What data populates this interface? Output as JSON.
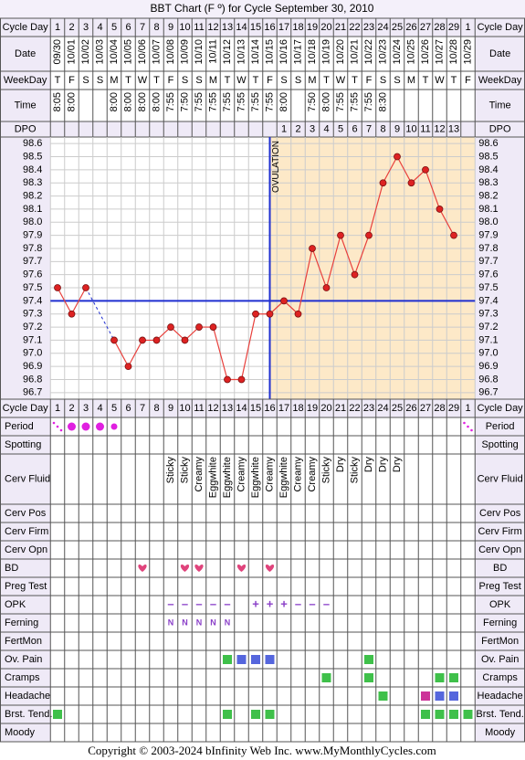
{
  "chart_data": {
    "type": "line",
    "title": "BBT Chart (F º) for Cycle September 30, 2010",
    "row_labels": {
      "cycle_day": "Cycle Day",
      "date": "Date",
      "weekday": "WeekDay",
      "time": "Time",
      "dpo": "DPO"
    },
    "cycle_days": [
      1,
      2,
      3,
      4,
      5,
      6,
      7,
      8,
      9,
      10,
      11,
      12,
      13,
      14,
      15,
      16,
      17,
      18,
      19,
      20,
      21,
      22,
      23,
      24,
      25,
      26,
      27,
      28,
      29,
      1
    ],
    "dates": [
      "09/30",
      "10/01",
      "10/02",
      "10/03",
      "10/04",
      "10/05",
      "10/06",
      "10/07",
      "10/08",
      "10/09",
      "10/10",
      "10/11",
      "10/12",
      "10/13",
      "10/14",
      "10/15",
      "10/16",
      "10/17",
      "10/18",
      "10/19",
      "10/20",
      "10/21",
      "10/22",
      "10/23",
      "10/24",
      "10/25",
      "10/26",
      "10/27",
      "10/28",
      "10/29"
    ],
    "weekdays": [
      "T",
      "F",
      "S",
      "S",
      "M",
      "T",
      "W",
      "T",
      "F",
      "S",
      "S",
      "M",
      "T",
      "W",
      "T",
      "F",
      "S",
      "S",
      "M",
      "T",
      "W",
      "T",
      "F",
      "S",
      "S",
      "M",
      "T",
      "W",
      "T",
      "F"
    ],
    "times": [
      "8:05",
      "8:00",
      null,
      null,
      "8:00",
      "8:00",
      "8:00",
      "8:00",
      "7:55",
      "7:50",
      "7:55",
      "7:55",
      "7:55",
      "7:55",
      "7:55",
      "7:55",
      "8:00",
      null,
      "7:50",
      "8:00",
      "7:55",
      "7:55",
      "7:55",
      "8:30",
      null,
      null,
      null,
      null,
      null,
      null
    ],
    "dpo": [
      null,
      null,
      null,
      null,
      null,
      null,
      null,
      null,
      null,
      null,
      null,
      null,
      null,
      null,
      null,
      null,
      1,
      2,
      3,
      4,
      5,
      6,
      7,
      8,
      9,
      10,
      11,
      12,
      13,
      null
    ],
    "series": [
      {
        "color": "#e8403c",
        "values": [
          97.5,
          97.3,
          97.5,
          null,
          97.1,
          96.9,
          97.1,
          97.1,
          97.2,
          97.1,
          97.2,
          97.2,
          96.8,
          96.8,
          97.3,
          97.3,
          97.4,
          97.3,
          97.8,
          97.5,
          97.9,
          97.6,
          97.9,
          98.3,
          98.5,
          98.3,
          98.4,
          98.1,
          97.9,
          null
        ]
      }
    ],
    "ylim": [
      96.65,
      98.65
    ],
    "yticks": [
      98.6,
      98.5,
      98.4,
      98.3,
      98.2,
      98.1,
      {
        "value": 98,
        "label": "98.0"
      },
      97.9,
      97.8,
      97.7,
      97.6,
      97.5,
      97.4,
      97.3,
      97.2,
      97.1,
      {
        "value": 97,
        "label": "97.0"
      },
      96.9,
      96.8,
      96.7
    ],
    "grid": true,
    "coverline": 97.4,
    "coverline_color": "#1f2fd0",
    "ovulation_day": 16,
    "annotation": "OVULATION",
    "post_ovulation_color": "#fde9c8",
    "level_colors": [
      "#3fc04a",
      "#5566dd",
      "#cc3399"
    ],
    "fertility_rows": [
      {
        "label": "Period",
        "kind": "period",
        "color": "#e020e0",
        "values": [
          1,
          3,
          3,
          3,
          2,
          null,
          null,
          null,
          null,
          null,
          null,
          null,
          null,
          null,
          null,
          null,
          null,
          null,
          null,
          null,
          null,
          null,
          null,
          null,
          null,
          null,
          null,
          null,
          null,
          1
        ]
      },
      {
        "label": "Spotting"
      },
      {
        "label": "Cerv Fluid",
        "kind": "text",
        "vertical": true,
        "values": [
          null,
          null,
          null,
          null,
          null,
          null,
          null,
          null,
          "Sticky",
          "Sticky",
          "Creamy",
          "Eggwhite",
          "Eggwhite",
          "Creamy",
          "Eggwhite",
          "Creamy",
          "Eggwhite",
          "Creamy",
          "Creamy",
          "Sticky",
          "Dry",
          "Sticky",
          "Dry",
          "Dry",
          "Dry",
          null,
          null,
          null,
          null,
          null
        ]
      },
      {
        "label": "Cerv Pos"
      },
      {
        "label": "Cerv Firm"
      },
      {
        "label": "Cerv Opn"
      },
      {
        "label": "BD",
        "kind": "heart",
        "color": "#e0447c",
        "values": [
          null,
          null,
          null,
          null,
          null,
          null,
          1,
          null,
          null,
          1,
          1,
          null,
          null,
          1,
          null,
          1,
          null,
          null,
          null,
          null,
          null,
          null,
          null,
          null,
          null,
          null,
          null,
          null,
          null,
          null
        ]
      },
      {
        "label": "Preg Test"
      },
      {
        "label": "OPK",
        "kind": "text",
        "color": "#8a3fc8",
        "values": [
          null,
          null,
          null,
          null,
          null,
          null,
          null,
          null,
          "–",
          "–",
          "–",
          "–",
          "–",
          null,
          "+",
          "+",
          "+",
          "–",
          "–",
          "–",
          null,
          null,
          null,
          null,
          null,
          null,
          null,
          null,
          null,
          null
        ]
      },
      {
        "label": "Ferning",
        "kind": "text",
        "color": "#8a3fc8",
        "small": true,
        "values": [
          null,
          null,
          null,
          null,
          null,
          null,
          null,
          null,
          "N",
          "N",
          "N",
          "N",
          "N",
          null,
          null,
          null,
          null,
          null,
          null,
          null,
          null,
          null,
          null,
          null,
          null,
          null,
          null,
          null,
          null,
          null
        ]
      },
      {
        "label": "FertMon"
      },
      {
        "label": "Ov. Pain",
        "kind": "level",
        "values": [
          null,
          null,
          null,
          null,
          null,
          null,
          null,
          null,
          null,
          null,
          null,
          null,
          1,
          2,
          2,
          2,
          null,
          null,
          null,
          null,
          null,
          null,
          1,
          null,
          null,
          null,
          null,
          null,
          null,
          null
        ]
      },
      {
        "label": "Cramps",
        "kind": "level",
        "values": [
          null,
          null,
          null,
          null,
          null,
          null,
          null,
          null,
          null,
          null,
          null,
          null,
          null,
          null,
          null,
          null,
          null,
          null,
          null,
          1,
          null,
          null,
          1,
          null,
          null,
          null,
          null,
          1,
          1,
          null
        ]
      },
      {
        "label": "Headache",
        "kind": "level",
        "values": [
          null,
          null,
          null,
          null,
          null,
          null,
          null,
          null,
          null,
          null,
          null,
          null,
          null,
          null,
          null,
          null,
          null,
          null,
          null,
          null,
          null,
          null,
          null,
          1,
          null,
          null,
          3,
          2,
          2,
          null
        ]
      },
      {
        "label": "Brst. Tend.",
        "kind": "level",
        "values": [
          1,
          null,
          null,
          null,
          null,
          null,
          null,
          null,
          null,
          null,
          null,
          null,
          1,
          null,
          1,
          1,
          null,
          null,
          null,
          null,
          null,
          null,
          null,
          null,
          null,
          null,
          1,
          1,
          1,
          1
        ]
      },
      {
        "label": "Moody"
      }
    ]
  },
  "footer": "Copyright © 2003-2024 bInfinity Web Inc.     www.MyMonthlyCycles.com"
}
